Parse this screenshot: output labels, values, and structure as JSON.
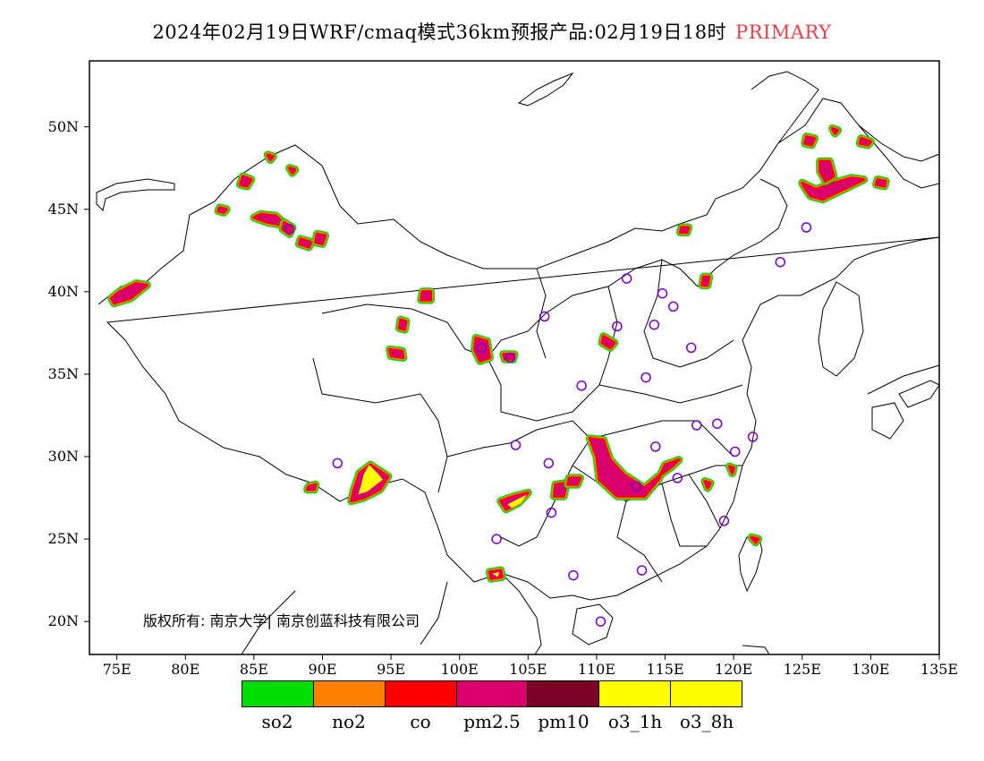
{
  "title": {
    "main": "2024年02月19日WRF/cmaq模式36km预报产品:02月19日18时",
    "tag": "PRIMARY",
    "tag_color": "#e8404a"
  },
  "copyright": "版权所有: 南京大学| 南京创蓝科技有限公司",
  "axes": {
    "lat_ticks": [
      "50N",
      "45N",
      "40N",
      "35N",
      "30N",
      "25N",
      "20N"
    ],
    "lat_values": [
      50,
      45,
      40,
      35,
      30,
      25,
      20
    ],
    "lon_ticks": [
      "75E",
      "80E",
      "85E",
      "90E",
      "95E",
      "100E",
      "105E",
      "110E",
      "115E",
      "120E",
      "125E",
      "130E",
      "135E"
    ],
    "lon_values": [
      75,
      80,
      85,
      90,
      95,
      100,
      105,
      110,
      115,
      120,
      125,
      130,
      135
    ],
    "lon_range": [
      73,
      135
    ],
    "lat_range": [
      18,
      54
    ]
  },
  "legend": {
    "items": [
      {
        "label": "so2",
        "color": "#00dd00"
      },
      {
        "label": "no2",
        "color": "#ff7f00"
      },
      {
        "label": "co",
        "color": "#ff0000"
      },
      {
        "label": "pm2.5",
        "color": "#d9006c"
      },
      {
        "label": "pm10",
        "color": "#7a0025"
      },
      {
        "label": "o3_1h",
        "color": "#ffff00"
      },
      {
        "label": "o3_8h",
        "color": "#ffff00"
      }
    ]
  },
  "stations_color": "#7a00cc",
  "stations": [
    [
      112.2,
      40.8
    ],
    [
      114.8,
      39.9
    ],
    [
      115.6,
      39.1
    ],
    [
      106.2,
      38.5
    ],
    [
      111.5,
      37.9
    ],
    [
      114.2,
      38.0
    ],
    [
      116.9,
      36.6
    ],
    [
      101.6,
      36.6
    ],
    [
      103.7,
      36.0
    ],
    [
      108.9,
      34.3
    ],
    [
      113.6,
      34.8
    ],
    [
      117.3,
      31.9
    ],
    [
      118.8,
      32.0
    ],
    [
      121.4,
      31.2
    ],
    [
      120.1,
      30.3
    ],
    [
      114.3,
      30.6
    ],
    [
      104.1,
      30.7
    ],
    [
      106.5,
      29.6
    ],
    [
      112.9,
      28.2
    ],
    [
      115.9,
      28.7
    ],
    [
      106.7,
      26.6
    ],
    [
      102.7,
      25.0
    ],
    [
      119.3,
      26.1
    ],
    [
      113.3,
      23.1
    ],
    [
      108.3,
      22.8
    ],
    [
      110.3,
      20.0
    ],
    [
      91.1,
      29.6
    ],
    [
      87.6,
      43.8
    ],
    [
      125.3,
      43.9
    ],
    [
      123.4,
      41.8
    ]
  ],
  "regions": [
    {
      "type": "pm25",
      "points": [
        [
          74.8,
          39.3
        ],
        [
          76.0,
          39.6
        ],
        [
          77.2,
          40.4
        ],
        [
          76.4,
          40.5
        ],
        [
          75.2,
          40.0
        ],
        [
          74.6,
          39.6
        ]
      ]
    },
    {
      "type": "pm25",
      "points": [
        [
          84.2,
          47.0
        ],
        [
          84.8,
          46.8
        ],
        [
          84.5,
          46.4
        ],
        [
          84.0,
          46.5
        ]
      ]
    },
    {
      "type": "pm25",
      "points": [
        [
          85.0,
          44.5
        ],
        [
          86.0,
          44.2
        ],
        [
          87.4,
          44.0
        ],
        [
          86.6,
          44.6
        ],
        [
          85.5,
          44.7
        ]
      ]
    },
    {
      "type": "pm25",
      "points": [
        [
          87.2,
          44.2
        ],
        [
          87.8,
          43.9
        ],
        [
          87.6,
          43.5
        ],
        [
          87.1,
          43.8
        ]
      ]
    },
    {
      "type": "pm25",
      "points": [
        [
          88.4,
          43.2
        ],
        [
          89.2,
          43.0
        ],
        [
          89.0,
          42.7
        ],
        [
          88.3,
          42.9
        ]
      ]
    },
    {
      "type": "pm25",
      "points": [
        [
          89.6,
          43.5
        ],
        [
          90.2,
          43.4
        ],
        [
          90.0,
          42.9
        ],
        [
          89.5,
          43.0
        ]
      ]
    },
    {
      "type": "pm25",
      "points": [
        [
          82.5,
          45.1
        ],
        [
          83.0,
          45.0
        ],
        [
          82.8,
          44.8
        ],
        [
          82.4,
          44.9
        ]
      ]
    },
    {
      "type": "pm25",
      "points": [
        [
          86.0,
          48.3
        ],
        [
          86.4,
          48.2
        ],
        [
          86.2,
          48.0
        ]
      ]
    },
    {
      "type": "pm25",
      "points": [
        [
          87.6,
          47.5
        ],
        [
          88.0,
          47.4
        ],
        [
          87.8,
          47.2
        ]
      ]
    },
    {
      "type": "pm25",
      "points": [
        [
          97.3,
          40.0
        ],
        [
          97.9,
          40.0
        ],
        [
          97.9,
          39.5
        ],
        [
          97.2,
          39.5
        ]
      ]
    },
    {
      "type": "pm25",
      "points": [
        [
          95.7,
          38.3
        ],
        [
          96.1,
          38.2
        ],
        [
          96.0,
          37.7
        ],
        [
          95.6,
          37.8
        ]
      ]
    },
    {
      "type": "pm25",
      "points": [
        [
          94.9,
          36.5
        ],
        [
          95.8,
          36.4
        ],
        [
          95.9,
          36.0
        ],
        [
          95.0,
          36.1
        ]
      ]
    },
    {
      "type": "pm25",
      "points": [
        [
          101.2,
          37.2
        ],
        [
          102.0,
          37.0
        ],
        [
          102.2,
          36.0
        ],
        [
          101.5,
          35.8
        ],
        [
          101.1,
          36.5
        ]
      ]
    },
    {
      "type": "pm25",
      "points": [
        [
          103.2,
          36.2
        ],
        [
          104.0,
          36.2
        ],
        [
          103.9,
          35.9
        ],
        [
          103.3,
          35.9
        ]
      ]
    },
    {
      "type": "pm25",
      "points": [
        [
          110.5,
          37.3
        ],
        [
          111.3,
          36.9
        ],
        [
          111.0,
          36.6
        ],
        [
          110.4,
          36.9
        ]
      ]
    },
    {
      "type": "pm25",
      "points": [
        [
          109.5,
          31.1
        ],
        [
          110.5,
          31.0
        ],
        [
          111.0,
          29.8
        ],
        [
          112.0,
          28.9
        ],
        [
          113.5,
          28.1
        ],
        [
          114.5,
          28.8
        ],
        [
          115.5,
          29.4
        ],
        [
          116.0,
          29.8
        ],
        [
          115.0,
          29.5
        ],
        [
          114.5,
          28.6
        ],
        [
          113.5,
          27.6
        ],
        [
          111.5,
          27.6
        ],
        [
          110.2,
          28.6
        ],
        [
          110.0,
          30.0
        ]
      ]
    },
    {
      "type": "pm25",
      "points": [
        [
          107.0,
          28.3
        ],
        [
          107.8,
          28.4
        ],
        [
          107.6,
          27.6
        ],
        [
          106.9,
          27.6
        ]
      ]
    },
    {
      "type": "pm25",
      "points": [
        [
          108.0,
          28.7
        ],
        [
          108.8,
          28.7
        ],
        [
          108.6,
          28.3
        ],
        [
          107.9,
          28.3
        ]
      ]
    },
    {
      "type": "pm25",
      "points": [
        [
          103.0,
          27.3
        ],
        [
          104.0,
          27.6
        ],
        [
          105.0,
          27.8
        ],
        [
          104.3,
          27.2
        ],
        [
          103.4,
          26.8
        ]
      ]
    },
    {
      "type": "pm25",
      "points": [
        [
          102.2,
          23.0
        ],
        [
          103.0,
          23.1
        ],
        [
          103.1,
          22.7
        ],
        [
          102.3,
          22.6
        ]
      ]
    },
    {
      "type": "pm25",
      "points": [
        [
          92.1,
          27.3
        ],
        [
          93.0,
          27.5
        ],
        [
          94.2,
          28.0
        ],
        [
          94.8,
          28.8
        ],
        [
          93.5,
          29.5
        ],
        [
          92.7,
          29.0
        ],
        [
          92.3,
          28.0
        ]
      ]
    },
    {
      "type": "pm25",
      "points": [
        [
          89.0,
          28.2
        ],
        [
          89.5,
          28.3
        ],
        [
          89.4,
          28.0
        ],
        [
          88.9,
          28.0
        ]
      ]
    },
    {
      "type": "pm25",
      "points": [
        [
          125.0,
          46.6
        ],
        [
          126.0,
          46.2
        ],
        [
          127.3,
          46.6
        ],
        [
          128.6,
          46.9
        ],
        [
          129.5,
          46.8
        ],
        [
          128.5,
          46.4
        ],
        [
          127.5,
          46.0
        ],
        [
          126.5,
          45.6
        ],
        [
          125.6,
          45.8
        ],
        [
          125.2,
          46.3
        ]
      ]
    },
    {
      "type": "pm25",
      "points": [
        [
          126.3,
          47.9
        ],
        [
          127.0,
          47.9
        ],
        [
          127.3,
          47.0
        ],
        [
          126.7,
          46.7
        ],
        [
          126.3,
          47.3
        ]
      ]
    },
    {
      "type": "pm25",
      "points": [
        [
          125.3,
          49.4
        ],
        [
          125.9,
          49.3
        ],
        [
          125.7,
          48.9
        ],
        [
          125.2,
          49.0
        ]
      ]
    },
    {
      "type": "pm25",
      "points": [
        [
          127.2,
          49.9
        ],
        [
          127.6,
          49.8
        ],
        [
          127.4,
          49.6
        ]
      ]
    },
    {
      "type": "pm25",
      "points": [
        [
          130.5,
          46.8
        ],
        [
          131.1,
          46.7
        ],
        [
          131.0,
          46.4
        ],
        [
          130.4,
          46.5
        ]
      ]
    },
    {
      "type": "pm25",
      "points": [
        [
          129.3,
          49.3
        ],
        [
          130.0,
          49.1
        ],
        [
          129.8,
          48.9
        ],
        [
          129.2,
          49.0
        ]
      ]
    },
    {
      "type": "pm25",
      "points": [
        [
          116.2,
          43.9
        ],
        [
          116.7,
          43.9
        ],
        [
          116.6,
          43.6
        ],
        [
          116.1,
          43.6
        ]
      ]
    },
    {
      "type": "pm25",
      "points": [
        [
          117.8,
          40.9
        ],
        [
          118.2,
          40.9
        ],
        [
          118.1,
          40.4
        ],
        [
          117.7,
          40.4
        ]
      ]
    },
    {
      "type": "pm25",
      "points": [
        [
          121.3,
          25.1
        ],
        [
          121.8,
          25.0
        ],
        [
          121.6,
          24.8
        ]
      ]
    },
    {
      "type": "pm25",
      "points": [
        [
          117.9,
          28.5
        ],
        [
          118.3,
          28.4
        ],
        [
          118.1,
          28.1
        ]
      ]
    },
    {
      "type": "pm25",
      "points": [
        [
          119.7,
          29.4
        ],
        [
          120.0,
          29.3
        ],
        [
          119.9,
          29.0
        ]
      ]
    },
    {
      "type": "o3",
      "points": [
        [
          92.6,
          27.7
        ],
        [
          93.3,
          27.9
        ],
        [
          94.4,
          28.6
        ],
        [
          94.0,
          29.0
        ],
        [
          93.4,
          29.5
        ],
        [
          93.0,
          28.9
        ],
        [
          92.8,
          28.2
        ]
      ]
    },
    {
      "type": "o3",
      "points": [
        [
          103.5,
          27.1
        ],
        [
          104.2,
          27.4
        ],
        [
          104.9,
          27.7
        ],
        [
          104.5,
          27.2
        ],
        [
          103.8,
          26.9
        ]
      ]
    },
    {
      "type": "o3",
      "points": [
        [
          102.4,
          22.9
        ],
        [
          102.9,
          23.0
        ],
        [
          102.8,
          22.7
        ]
      ]
    }
  ]
}
